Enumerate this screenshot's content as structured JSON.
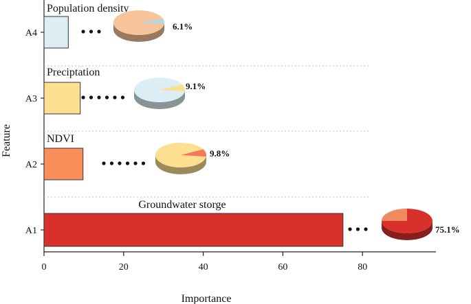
{
  "chart_data": {
    "type": "bar",
    "orientation": "horizontal",
    "xlabel": "Importance",
    "ylabel": "Feature",
    "xlim": [
      0,
      98
    ],
    "xticks": [
      0,
      20,
      40,
      60,
      80
    ],
    "grid": "horizontal dotted separators",
    "categories": [
      "A4",
      "A3",
      "A2",
      "A1"
    ],
    "bar_labels": [
      "Population density",
      "Preciptation",
      "NDVI",
      "Groundwater storge"
    ],
    "values": [
      6.1,
      9.1,
      9.8,
      75.1
    ],
    "percent_labels": [
      "6.1%",
      "9.1%",
      "9.8%",
      "75.1%"
    ],
    "colors": [
      "#dcedf4",
      "#fcdf91",
      "#fa8f5c",
      "#d8302a"
    ],
    "pie_base_colors": [
      "#f7c59b",
      "#dcedf4",
      "#fcdf91",
      "#d8302a"
    ],
    "pie_shares": [
      0.061,
      0.091,
      0.098,
      0.751
    ]
  }
}
